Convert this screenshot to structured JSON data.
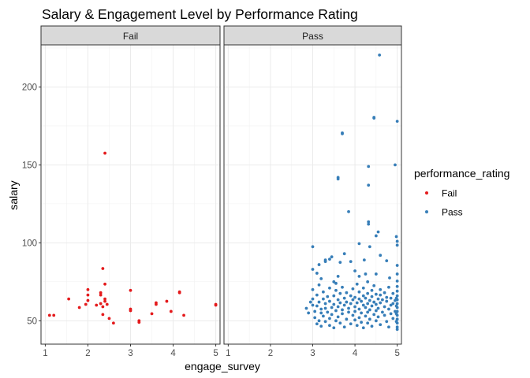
{
  "chart_data": {
    "type": "scatter",
    "title": "Salary & Engagement Level by Performance Rating",
    "xlabel": "engage_survey",
    "ylabel": "salary",
    "xlim": [
      0.9,
      5.1
    ],
    "ylim": [
      35,
      227
    ],
    "x_ticks": [
      1,
      2,
      3,
      4,
      5
    ],
    "x_tick_labels": [
      "1",
      "2",
      "3",
      "4",
      "5"
    ],
    "y_ticks": [
      50,
      100,
      150,
      200
    ],
    "y_tick_labels": [
      "50",
      "100",
      "150",
      "200"
    ],
    "grid": true,
    "facet_variable": "performance_rating",
    "legend": {
      "title": "performance_rating",
      "position": "right",
      "entries": [
        {
          "label": "Fail",
          "color": "#E41A1C"
        },
        {
          "label": "Pass",
          "color": "#377EB8"
        }
      ]
    },
    "panels": [
      {
        "strip": "Fail",
        "color": "#E41A1C",
        "points": [
          [
            1.1,
            53.5
          ],
          [
            1.2,
            53.5
          ],
          [
            1.55,
            64
          ],
          [
            1.8,
            58.5
          ],
          [
            1.95,
            60.5
          ],
          [
            2.0,
            63
          ],
          [
            2.0,
            66.5
          ],
          [
            2.0,
            70
          ],
          [
            2.2,
            60
          ],
          [
            2.3,
            61
          ],
          [
            2.3,
            66.5
          ],
          [
            2.3,
            68
          ],
          [
            2.35,
            83.5
          ],
          [
            2.35,
            59
          ],
          [
            2.35,
            54
          ],
          [
            2.4,
            157.5
          ],
          [
            2.4,
            73.5
          ],
          [
            2.4,
            64
          ],
          [
            2.4,
            62.5
          ],
          [
            2.45,
            60.5
          ],
          [
            2.5,
            51.5
          ],
          [
            2.6,
            48.5
          ],
          [
            3.0,
            57.5
          ],
          [
            3.0,
            69.5
          ],
          [
            3.0,
            56.5
          ],
          [
            3.2,
            50
          ],
          [
            3.2,
            49
          ],
          [
            3.5,
            54.5
          ],
          [
            3.6,
            60.5
          ],
          [
            3.6,
            61.5
          ],
          [
            3.85,
            62.5
          ],
          [
            3.95,
            56
          ],
          [
            4.15,
            68
          ],
          [
            4.15,
            68.5
          ],
          [
            4.25,
            53.5
          ],
          [
            5.0,
            60.5
          ],
          [
            5.0,
            60
          ]
        ]
      },
      {
        "strip": "Pass",
        "color": "#377EB8",
        "points": [
          [
            4.58,
            220.5
          ],
          [
            4.45,
            180.5
          ],
          [
            4.45,
            180
          ],
          [
            5.0,
            178
          ],
          [
            3.7,
            170.5
          ],
          [
            3.7,
            170
          ],
          [
            4.32,
            149
          ],
          [
            4.95,
            150
          ],
          [
            3.6,
            142
          ],
          [
            3.6,
            141
          ],
          [
            4.32,
            137
          ],
          [
            3.85,
            120
          ],
          [
            4.32,
            113.5
          ],
          [
            4.32,
            112
          ],
          [
            4.55,
            107
          ],
          [
            4.5,
            104.5
          ],
          [
            4.98,
            104
          ],
          [
            5.0,
            101
          ],
          [
            5.0,
            98.5
          ],
          [
            4.1,
            99.5
          ],
          [
            4.35,
            97.5
          ],
          [
            3.75,
            93
          ],
          [
            4.6,
            92
          ],
          [
            3.0,
            97.5
          ],
          [
            3.45,
            91
          ],
          [
            3.4,
            89.5
          ],
          [
            3.3,
            89
          ],
          [
            3.3,
            88
          ],
          [
            3.15,
            86
          ],
          [
            3.65,
            87.5
          ],
          [
            3.9,
            88
          ],
          [
            4.22,
            89
          ],
          [
            4.75,
            88.5
          ],
          [
            5.0,
            85.5
          ],
          [
            3.0,
            83
          ],
          [
            3.1,
            80.5
          ],
          [
            3.2,
            77
          ],
          [
            3.5,
            75
          ],
          [
            3.55,
            74
          ],
          [
            3.6,
            78.5
          ],
          [
            4.0,
            82
          ],
          [
            4.1,
            78.5
          ],
          [
            4.25,
            80
          ],
          [
            4.5,
            80
          ],
          [
            4.82,
            77.5
          ],
          [
            5.0,
            80
          ],
          [
            5.0,
            75.5
          ],
          [
            2.85,
            58
          ],
          [
            2.9,
            55
          ],
          [
            2.95,
            62
          ],
          [
            3.0,
            70
          ],
          [
            3.0,
            64
          ],
          [
            3.0,
            60
          ],
          [
            3.05,
            56
          ],
          [
            3.05,
            52
          ],
          [
            3.1,
            66.5
          ],
          [
            3.1,
            59.5
          ],
          [
            3.1,
            48
          ],
          [
            3.15,
            73
          ],
          [
            3.15,
            62
          ],
          [
            3.15,
            50
          ],
          [
            3.2,
            57.5
          ],
          [
            3.2,
            55
          ],
          [
            3.2,
            46.5
          ],
          [
            3.25,
            68.5
          ],
          [
            3.25,
            64
          ],
          [
            3.25,
            53
          ],
          [
            3.3,
            61
          ],
          [
            3.3,
            58
          ],
          [
            3.3,
            49.5
          ],
          [
            3.35,
            65.5
          ],
          [
            3.35,
            55.5
          ],
          [
            3.4,
            71
          ],
          [
            3.4,
            62.5
          ],
          [
            3.4,
            51.5
          ],
          [
            3.4,
            47
          ],
          [
            3.45,
            58.5
          ],
          [
            3.45,
            54
          ],
          [
            3.5,
            66
          ],
          [
            3.5,
            60.5
          ],
          [
            3.5,
            45.5
          ],
          [
            3.55,
            69.5
          ],
          [
            3.55,
            56.5
          ],
          [
            3.55,
            50
          ],
          [
            3.6,
            63.5
          ],
          [
            3.6,
            59
          ],
          [
            3.6,
            52.5
          ],
          [
            3.65,
            67.5
          ],
          [
            3.65,
            61.5
          ],
          [
            3.65,
            48.5
          ],
          [
            3.7,
            71.5
          ],
          [
            3.7,
            57
          ],
          [
            3.7,
            54.5
          ],
          [
            3.75,
            64.5
          ],
          [
            3.75,
            60
          ],
          [
            3.75,
            46
          ],
          [
            3.8,
            68
          ],
          [
            3.8,
            62
          ],
          [
            3.8,
            51
          ],
          [
            3.85,
            58
          ],
          [
            3.85,
            55.5
          ],
          [
            3.9,
            66
          ],
          [
            3.9,
            61
          ],
          [
            3.9,
            48
          ],
          [
            3.95,
            70.5
          ],
          [
            3.95,
            63.5
          ],
          [
            3.95,
            53.5
          ],
          [
            4.0,
            65
          ],
          [
            4.0,
            59
          ],
          [
            4.0,
            56
          ],
          [
            4.0,
            50.5
          ],
          [
            4.05,
            73.5
          ],
          [
            4.05,
            61.5
          ],
          [
            4.05,
            47
          ],
          [
            4.1,
            68.5
          ],
          [
            4.1,
            64
          ],
          [
            4.1,
            57.5
          ],
          [
            4.1,
            52
          ],
          [
            4.15,
            62.5
          ],
          [
            4.15,
            55
          ],
          [
            4.15,
            49
          ],
          [
            4.2,
            71
          ],
          [
            4.2,
            66
          ],
          [
            4.2,
            60
          ],
          [
            4.2,
            45.5
          ],
          [
            4.25,
            64.5
          ],
          [
            4.25,
            58.5
          ],
          [
            4.25,
            53
          ],
          [
            4.3,
            75
          ],
          [
            4.3,
            67.5
          ],
          [
            4.3,
            61
          ],
          [
            4.3,
            55.5
          ],
          [
            4.3,
            48.5
          ],
          [
            4.35,
            63
          ],
          [
            4.35,
            57
          ],
          [
            4.35,
            51
          ],
          [
            4.4,
            69.5
          ],
          [
            4.4,
            65.5
          ],
          [
            4.4,
            59.5
          ],
          [
            4.4,
            46.5
          ],
          [
            4.45,
            72.5
          ],
          [
            4.45,
            62
          ],
          [
            4.45,
            54
          ],
          [
            4.5,
            67
          ],
          [
            4.5,
            60.5
          ],
          [
            4.5,
            56.5
          ],
          [
            4.5,
            50
          ],
          [
            4.55,
            64
          ],
          [
            4.55,
            58
          ],
          [
            4.55,
            52.5
          ],
          [
            4.6,
            70
          ],
          [
            4.6,
            66.5
          ],
          [
            4.6,
            61.5
          ],
          [
            4.6,
            47.5
          ],
          [
            4.65,
            63.5
          ],
          [
            4.65,
            55.5
          ],
          [
            4.7,
            68
          ],
          [
            4.7,
            59
          ],
          [
            4.7,
            53.5
          ],
          [
            4.75,
            65
          ],
          [
            4.75,
            62.5
          ],
          [
            4.75,
            49.5
          ],
          [
            4.8,
            71.5
          ],
          [
            4.8,
            57.5
          ],
          [
            4.8,
            46
          ],
          [
            4.85,
            64.5
          ],
          [
            4.85,
            60
          ],
          [
            4.85,
            54.5
          ],
          [
            4.9,
            67.5
          ],
          [
            4.9,
            61
          ],
          [
            4.9,
            51.5
          ],
          [
            4.95,
            63
          ],
          [
            4.95,
            56
          ],
          [
            5.0,
            72
          ],
          [
            5.0,
            69
          ],
          [
            5.0,
            66
          ],
          [
            5.0,
            63.5
          ],
          [
            5.0,
            61
          ],
          [
            5.0,
            58.5
          ],
          [
            5.0,
            56
          ],
          [
            5.0,
            53.5
          ],
          [
            5.0,
            51
          ],
          [
            5.0,
            48.5
          ],
          [
            5.0,
            46
          ],
          [
            4.98,
            64.5
          ],
          [
            4.98,
            59.5
          ],
          [
            4.98,
            54.5
          ],
          [
            4.98,
            49.5
          ],
          [
            5.0,
            44.5
          ]
        ]
      }
    ]
  }
}
